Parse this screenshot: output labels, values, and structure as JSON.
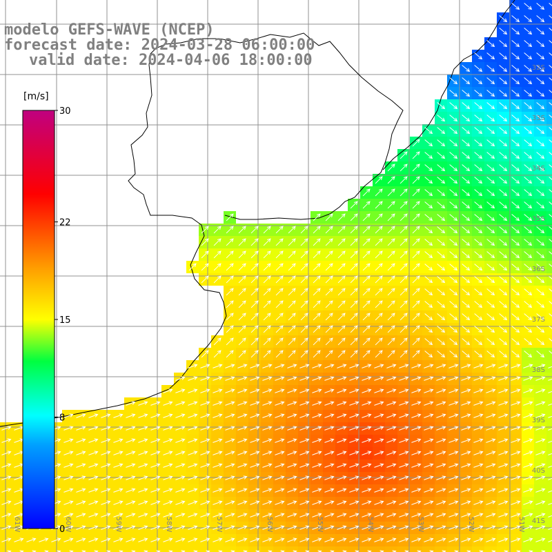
{
  "title": {
    "line1": "modelo GEFS-WAVE (NCEP)",
    "line2": "forecast date: 2024-03-28 06:00:00",
    "line3": "valid date: 2024-04-06 18:00:00"
  },
  "colorbar": {
    "unit": "[m/s]",
    "min": 0,
    "max": 30,
    "tick_labels": [
      "30",
      "22",
      "15",
      "8",
      "0"
    ],
    "tick_values": [
      30,
      22,
      15,
      8,
      0
    ],
    "colors": [
      "#0000ff",
      "#00c0ff",
      "#00ffff",
      "#00ff00",
      "#ffff00",
      "#ff8000",
      "#ff0000",
      "#c00080"
    ]
  },
  "map": {
    "lon_labels": [
      "61W",
      "60W",
      "59W",
      "58W",
      "57W",
      "56W",
      "55W",
      "54W",
      "53W",
      "52W",
      "51W"
    ],
    "lat_labels": [
      "32S",
      "33S",
      "34S",
      "35S",
      "36S",
      "37S",
      "38S",
      "39S",
      "40S",
      "41S"
    ]
  }
}
